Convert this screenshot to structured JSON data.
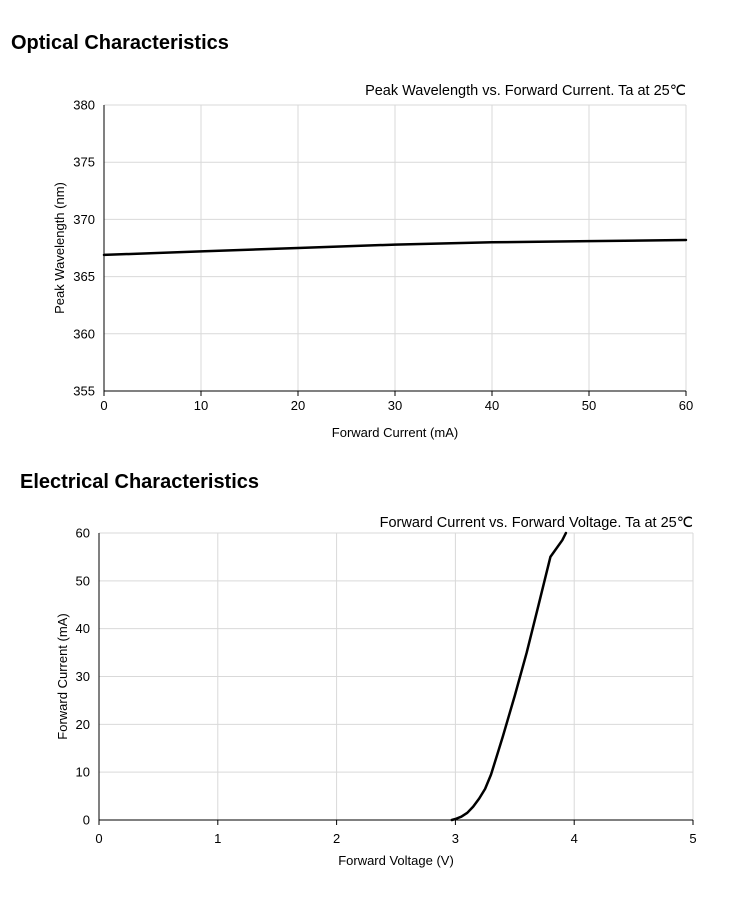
{
  "sections": {
    "optical_title": "Optical Characteristics",
    "electrical_title": "Electrical Characteristics"
  },
  "colors": {
    "grid": "#d9d9d9",
    "line": "#000000",
    "axis": "#000000"
  },
  "chart_data": [
    {
      "type": "line",
      "title": "Peak Wavelength vs. Forward Current. Ta at 25℃",
      "xlabel": "Forward Current (mA)",
      "ylabel": "Peak Wavelength (nm)",
      "xlim": [
        0,
        60
      ],
      "ylim": [
        355,
        380
      ],
      "xticks": [
        0,
        10,
        20,
        30,
        40,
        50,
        60
      ],
      "yticks": [
        355,
        360,
        365,
        370,
        375,
        380
      ],
      "grid": true,
      "series": [
        {
          "name": "Peak Wavelength",
          "x": [
            0,
            10,
            20,
            30,
            40,
            50,
            60
          ],
          "y": [
            366.9,
            367.2,
            367.5,
            367.8,
            368.0,
            368.1,
            368.2
          ]
        }
      ]
    },
    {
      "type": "line",
      "title": "Forward Current vs. Forward Voltage. Ta at 25℃",
      "xlabel": "Forward Voltage (V)",
      "ylabel": "Forward Current (mA)",
      "xlim": [
        0,
        5
      ],
      "ylim": [
        0,
        60
      ],
      "xticks": [
        0,
        1,
        2,
        3,
        4,
        5
      ],
      "yticks": [
        0,
        10,
        20,
        30,
        40,
        50,
        60
      ],
      "grid": true,
      "series": [
        {
          "name": "Forward Current",
          "x": [
            2.97,
            3.0,
            3.05,
            3.1,
            3.15,
            3.2,
            3.25,
            3.3,
            3.35,
            3.4,
            3.5,
            3.6,
            3.7,
            3.8,
            3.9,
            3.93
          ],
          "y": [
            0,
            0.2,
            0.7,
            1.5,
            2.8,
            4.5,
            6.5,
            9.5,
            13.5,
            17.5,
            26,
            35,
            45,
            55,
            58.5,
            60
          ]
        }
      ]
    }
  ]
}
